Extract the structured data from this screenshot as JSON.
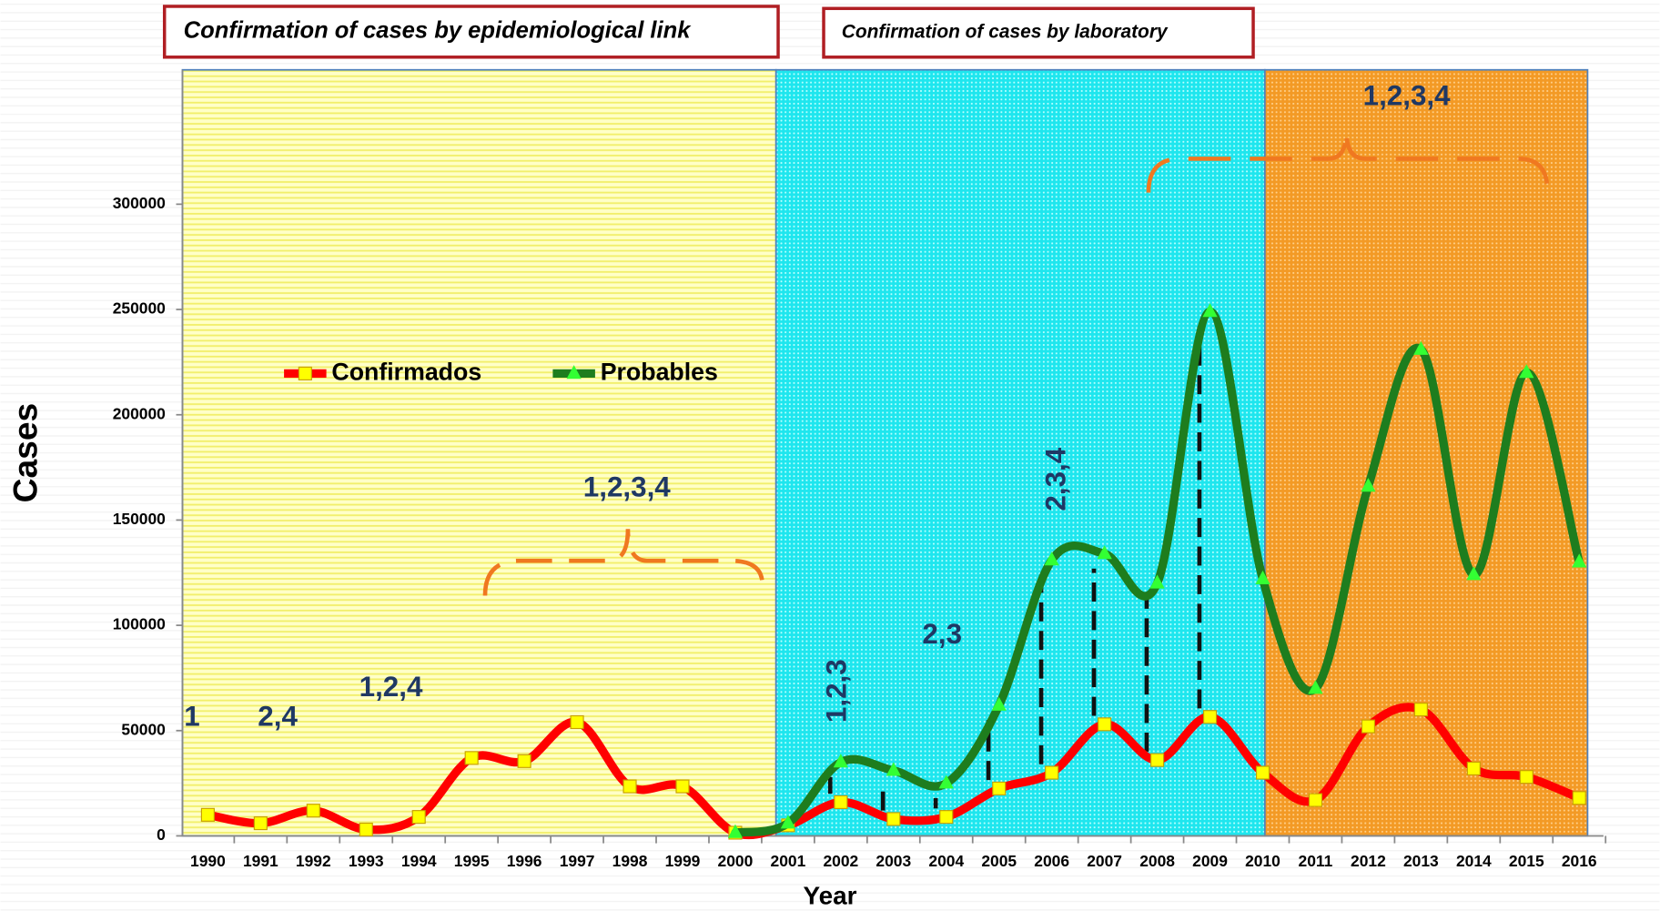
{
  "chart_data": {
    "type": "line",
    "panel_titles": [
      "Confirmation of cases by epidemiological link",
      "Confirmation of cases by laboratory"
    ],
    "xlabel": "Year",
    "ylabel": "Cases",
    "categories": [
      "1990",
      "1991",
      "1992",
      "1993",
      "1994",
      "1995",
      "1996",
      "1997",
      "1998",
      "1999",
      "2000",
      "2001",
      "2002",
      "2003",
      "2004",
      "2005",
      "2006",
      "2007",
      "2008",
      "2009",
      "2010",
      "2011",
      "2012",
      "2013",
      "2014",
      "2015",
      "2016"
    ],
    "series": [
      {
        "name": "Confirmados",
        "color": "#ff0000",
        "marker_color": "#ffff00",
        "values": [
          10000,
          6000,
          12000,
          3000,
          9000,
          37000,
          35500,
          54000,
          23500,
          23500,
          1500,
          5000,
          16000,
          8000,
          9000,
          22500,
          30000,
          53000,
          36000,
          56500,
          30000,
          17000,
          52000,
          60000,
          32000,
          28000,
          18000
        ]
      },
      {
        "name": "Probables",
        "color": "#1e7d1e",
        "marker_color": "#33ff33",
        "values": [
          null,
          null,
          null,
          null,
          null,
          null,
          null,
          null,
          null,
          null,
          1500,
          6000,
          35000,
          31000,
          25000,
          62000,
          131000,
          134000,
          120000,
          249000,
          122000,
          70000,
          166000,
          231000,
          124000,
          220000,
          130000
        ]
      }
    ],
    "annotations": [
      "1",
      "2,4",
      "1,2,4",
      "1,2,3,4",
      "1,2,3",
      "2,3",
      "2,3,4",
      "1,2,3,4"
    ],
    "ylim": [
      0,
      300000
    ],
    "yticks": [
      0,
      50000,
      100000,
      150000,
      200000,
      250000,
      300000
    ],
    "grid": false,
    "legend": "upper left"
  }
}
